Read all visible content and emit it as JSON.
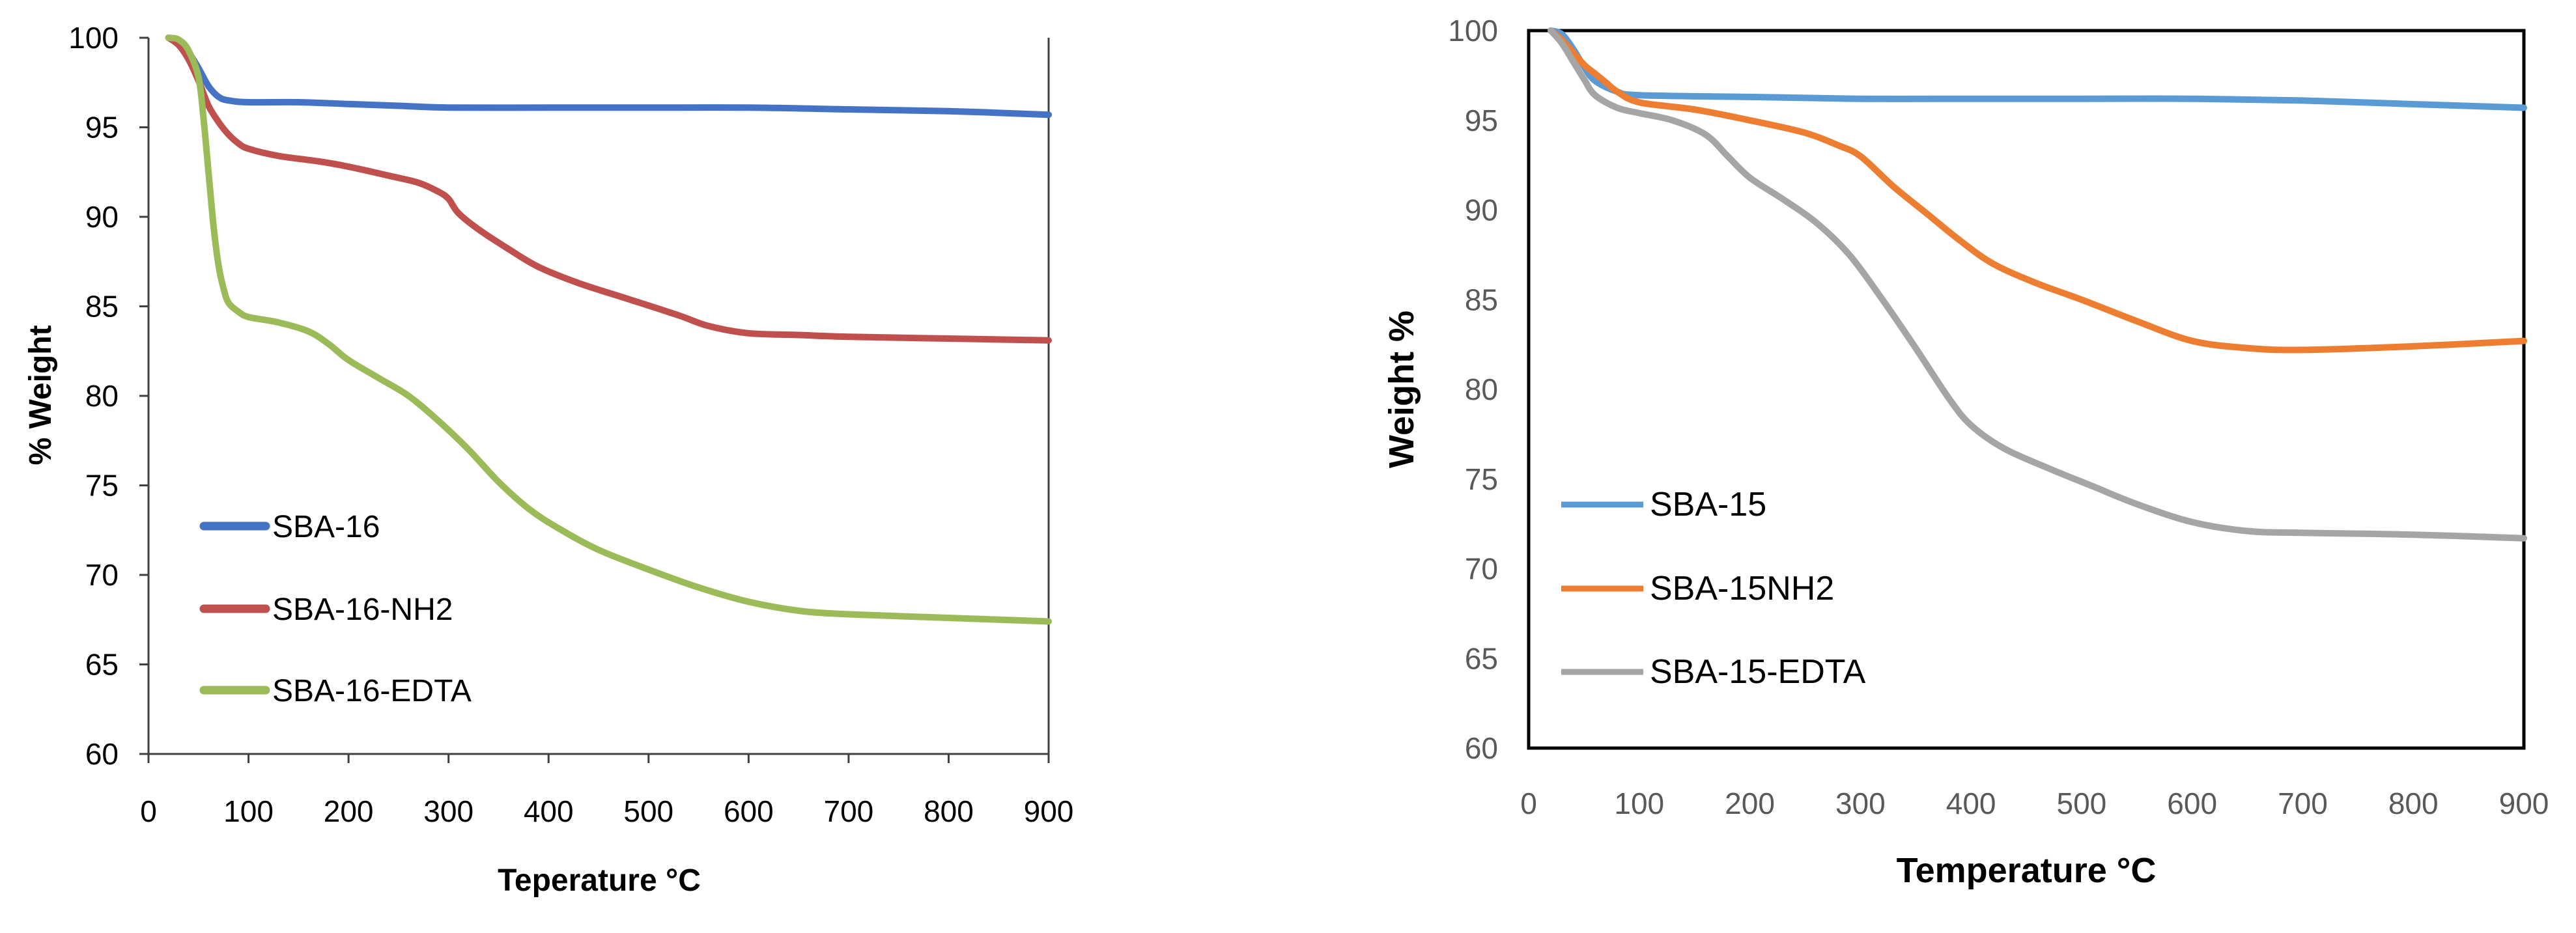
{
  "chart_data": [
    {
      "type": "line",
      "title": "",
      "xlabel": "Teperature °C",
      "ylabel": "% Weight",
      "xlim": [
        0,
        900
      ],
      "ylim": [
        60,
        100
      ],
      "x_ticks": [
        "0",
        "100",
        "200",
        "300",
        "400",
        "500",
        "600",
        "700",
        "800",
        "900"
      ],
      "y_ticks": [
        "60",
        "65",
        "70",
        "75",
        "80",
        "85",
        "90",
        "95",
        "100"
      ],
      "grid": false,
      "legend_position": "lower-left",
      "series": [
        {
          "name": "SBA-16",
          "color": "#4472c4",
          "points": [
            [
              20,
              100
            ],
            [
              30,
              99.8
            ],
            [
              40,
              99.2
            ],
            [
              50,
              98.3
            ],
            [
              60,
              97.3
            ],
            [
              70,
              96.7
            ],
            [
              80,
              96.5
            ],
            [
              100,
              96.4
            ],
            [
              150,
              96.4
            ],
            [
              200,
              96.3
            ],
            [
              250,
              96.2
            ],
            [
              300,
              96.1
            ],
            [
              400,
              96.1
            ],
            [
              500,
              96.1
            ],
            [
              600,
              96.1
            ],
            [
              700,
              96.0
            ],
            [
              800,
              95.9
            ],
            [
              900,
              95.7
            ]
          ]
        },
        {
          "name": "SBA-16-NH2",
          "color": "#c0504d",
          "points": [
            [
              20,
              100
            ],
            [
              30,
              99.6
            ],
            [
              40,
              98.8
            ],
            [
              50,
              97.6
            ],
            [
              60,
              96.2
            ],
            [
              70,
              95.3
            ],
            [
              80,
              94.6
            ],
            [
              90,
              94.1
            ],
            [
              100,
              93.8
            ],
            [
              130,
              93.4
            ],
            [
              170,
              93.1
            ],
            [
              200,
              92.8
            ],
            [
              240,
              92.3
            ],
            [
              270,
              91.9
            ],
            [
              290,
              91.4
            ],
            [
              300,
              91.0
            ],
            [
              310,
              90.2
            ],
            [
              330,
              89.3
            ],
            [
              360,
              88.2
            ],
            [
              390,
              87.2
            ],
            [
              430,
              86.3
            ],
            [
              480,
              85.4
            ],
            [
              530,
              84.5
            ],
            [
              560,
              83.9
            ],
            [
              600,
              83.5
            ],
            [
              650,
              83.4
            ],
            [
              700,
              83.3
            ],
            [
              800,
              83.2
            ],
            [
              900,
              83.1
            ]
          ]
        },
        {
          "name": "SBA-16-EDTA",
          "color": "#9bbb59",
          "points": [
            [
              20,
              100
            ],
            [
              30,
              99.9
            ],
            [
              40,
              99.3
            ],
            [
              50,
              97.8
            ],
            [
              55,
              95.5
            ],
            [
              60,
              92.5
            ],
            [
              65,
              89.5
            ],
            [
              70,
              87.3
            ],
            [
              75,
              86.0
            ],
            [
              80,
              85.2
            ],
            [
              90,
              84.7
            ],
            [
              100,
              84.4
            ],
            [
              130,
              84.1
            ],
            [
              160,
              83.6
            ],
            [
              180,
              82.9
            ],
            [
              200,
              82.0
            ],
            [
              230,
              81.0
            ],
            [
              260,
              80.0
            ],
            [
              290,
              78.6
            ],
            [
              320,
              77.0
            ],
            [
              350,
              75.2
            ],
            [
              380,
              73.7
            ],
            [
              410,
              72.6
            ],
            [
              450,
              71.4
            ],
            [
              500,
              70.3
            ],
            [
              550,
              69.3
            ],
            [
              600,
              68.5
            ],
            [
              650,
              68.0
            ],
            [
              700,
              67.8
            ],
            [
              800,
              67.6
            ],
            [
              900,
              67.4
            ]
          ]
        }
      ]
    },
    {
      "type": "line",
      "title": "",
      "xlabel": "Temperature °C",
      "ylabel": "Weight %",
      "xlim": [
        0,
        900
      ],
      "ylim": [
        60,
        100
      ],
      "x_ticks": [
        "0",
        "100",
        "200",
        "300",
        "400",
        "500",
        "600",
        "700",
        "800",
        "900"
      ],
      "y_ticks": [
        "60",
        "65",
        "70",
        "75",
        "80",
        "85",
        "90",
        "95",
        "100"
      ],
      "grid": false,
      "legend_position": "lower-left",
      "series": [
        {
          "name": "SBA-15",
          "color": "#5b9bd5",
          "points": [
            [
              20,
              100
            ],
            [
              30,
              99.8
            ],
            [
              40,
              99.0
            ],
            [
              50,
              98.0
            ],
            [
              60,
              97.2
            ],
            [
              80,
              96.6
            ],
            [
              100,
              96.4
            ],
            [
              200,
              96.3
            ],
            [
              300,
              96.2
            ],
            [
              400,
              96.2
            ],
            [
              500,
              96.2
            ],
            [
              600,
              96.2
            ],
            [
              700,
              96.1
            ],
            [
              800,
              95.9
            ],
            [
              900,
              95.7
            ]
          ]
        },
        {
          "name": "SBA-15NH2",
          "color": "#ed7d31",
          "points": [
            [
              20,
              100
            ],
            [
              30,
              99.5
            ],
            [
              40,
              98.8
            ],
            [
              50,
              98.1
            ],
            [
              60,
              97.6
            ],
            [
              70,
              97.1
            ],
            [
              80,
              96.6
            ],
            [
              100,
              96.0
            ],
            [
              150,
              95.6
            ],
            [
              200,
              95.0
            ],
            [
              250,
              94.3
            ],
            [
              280,
              93.6
            ],
            [
              300,
              93.0
            ],
            [
              330,
              91.3
            ],
            [
              360,
              89.8
            ],
            [
              390,
              88.3
            ],
            [
              420,
              87.0
            ],
            [
              460,
              85.9
            ],
            [
              500,
              85.0
            ],
            [
              550,
              83.8
            ],
            [
              600,
              82.7
            ],
            [
              650,
              82.3
            ],
            [
              700,
              82.2
            ],
            [
              800,
              82.4
            ],
            [
              900,
              82.7
            ]
          ]
        },
        {
          "name": "SBA-15-EDTA",
          "color": "#a5a5a5",
          "points": [
            [
              20,
              100
            ],
            [
              30,
              99.3
            ],
            [
              40,
              98.3
            ],
            [
              50,
              97.3
            ],
            [
              60,
              96.4
            ],
            [
              80,
              95.7
            ],
            [
              100,
              95.4
            ],
            [
              130,
              95.0
            ],
            [
              160,
              94.2
            ],
            [
              180,
              93.0
            ],
            [
              200,
              91.8
            ],
            [
              230,
              90.6
            ],
            [
              260,
              89.3
            ],
            [
              290,
              87.5
            ],
            [
              320,
              85.0
            ],
            [
              350,
              82.3
            ],
            [
              380,
              79.5
            ],
            [
              400,
              78.0
            ],
            [
              430,
              76.7
            ],
            [
              470,
              75.6
            ],
            [
              510,
              74.6
            ],
            [
              550,
              73.6
            ],
            [
              600,
              72.6
            ],
            [
              650,
              72.1
            ],
            [
              700,
              72.0
            ],
            [
              800,
              71.9
            ],
            [
              900,
              71.7
            ]
          ]
        }
      ]
    }
  ]
}
